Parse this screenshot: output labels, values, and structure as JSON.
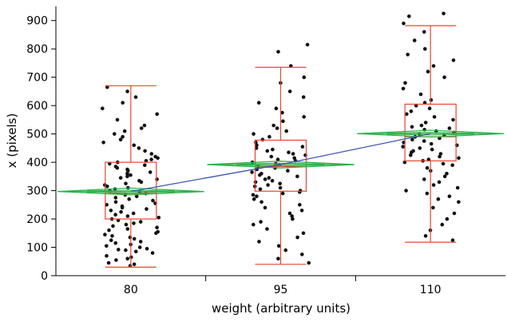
{
  "chart_data": {
    "type": "scatter",
    "subtype": "jittered points with box plots, mean-diamonds and means line",
    "title": "",
    "xlabel": "weight (arbitrary units)",
    "ylabel": "x (pixels)",
    "categories": [
      "80",
      "95",
      "110"
    ],
    "ylim": [
      0,
      950
    ],
    "yticks": [
      0,
      100,
      200,
      300,
      400,
      500,
      600,
      700,
      800,
      900
    ],
    "grid": false,
    "legend": "none",
    "groups": [
      {
        "category": "80",
        "box": {
          "whisker_low": 30,
          "q1": 200,
          "median": 290,
          "q3": 400,
          "whisker_high": 670
        },
        "mean": 297,
        "diamond_half_height": 12
      },
      {
        "category": "95",
        "box": {
          "whisker_low": 40,
          "q1": 298,
          "median": 385,
          "q3": 478,
          "whisker_high": 735
        },
        "mean": 392,
        "diamond_half_height": 12
      },
      {
        "category": "110",
        "box": {
          "whisker_low": 118,
          "q1": 405,
          "median": 490,
          "q3": 605,
          "whisker_high": 882
        },
        "mean": 501,
        "diamond_half_height": 12
      }
    ],
    "series": [
      {
        "category": "80",
        "y": [
          35,
          40,
          45,
          55,
          60,
          65,
          70,
          80,
          85,
          90,
          92,
          95,
          100,
          105,
          110,
          115,
          120,
          125,
          130,
          135,
          140,
          145,
          150,
          155,
          160,
          165,
          170,
          175,
          180,
          185,
          190,
          195,
          200,
          205,
          210,
          215,
          220,
          225,
          230,
          235,
          240,
          245,
          250,
          255,
          260,
          265,
          270,
          275,
          280,
          285,
          290,
          295,
          300,
          305,
          310,
          315,
          320,
          325,
          330,
          335,
          340,
          345,
          350,
          355,
          360,
          365,
          370,
          375,
          380,
          385,
          390,
          395,
          400,
          405,
          410,
          415,
          420,
          430,
          440,
          450,
          460,
          470,
          480,
          490,
          500,
          510,
          520,
          530,
          550,
          570,
          590,
          610,
          630,
          650,
          665
        ]
      },
      {
        "category": "95",
        "y": [
          45,
          60,
          75,
          90,
          105,
          120,
          135,
          150,
          165,
          180,
          190,
          200,
          210,
          220,
          230,
          240,
          250,
          260,
          270,
          280,
          285,
          290,
          295,
          300,
          305,
          310,
          315,
          320,
          325,
          330,
          335,
          340,
          345,
          350,
          355,
          360,
          365,
          370,
          375,
          380,
          385,
          390,
          395,
          400,
          405,
          410,
          415,
          420,
          425,
          430,
          435,
          440,
          445,
          450,
          455,
          460,
          470,
          480,
          490,
          500,
          510,
          520,
          530,
          545,
          560,
          575,
          590,
          610,
          630,
          650,
          680,
          700,
          740,
          790,
          815
        ]
      },
      {
        "category": "110",
        "y": [
          125,
          140,
          160,
          180,
          200,
          220,
          240,
          260,
          270,
          280,
          290,
          300,
          310,
          320,
          330,
          340,
          350,
          360,
          370,
          380,
          390,
          395,
          400,
          405,
          410,
          415,
          420,
          425,
          430,
          435,
          440,
          445,
          450,
          455,
          460,
          465,
          470,
          475,
          480,
          485,
          490,
          495,
          500,
          505,
          510,
          515,
          520,
          525,
          530,
          540,
          550,
          560,
          570,
          580,
          590,
          600,
          610,
          620,
          640,
          660,
          680,
          700,
          720,
          740,
          760,
          780,
          800,
          830,
          860,
          890,
          915,
          925
        ]
      }
    ],
    "colors": {
      "box": "#e8452f",
      "diamond": "#2db34a",
      "means_line": "#3b56b0",
      "points": "#111111"
    }
  }
}
